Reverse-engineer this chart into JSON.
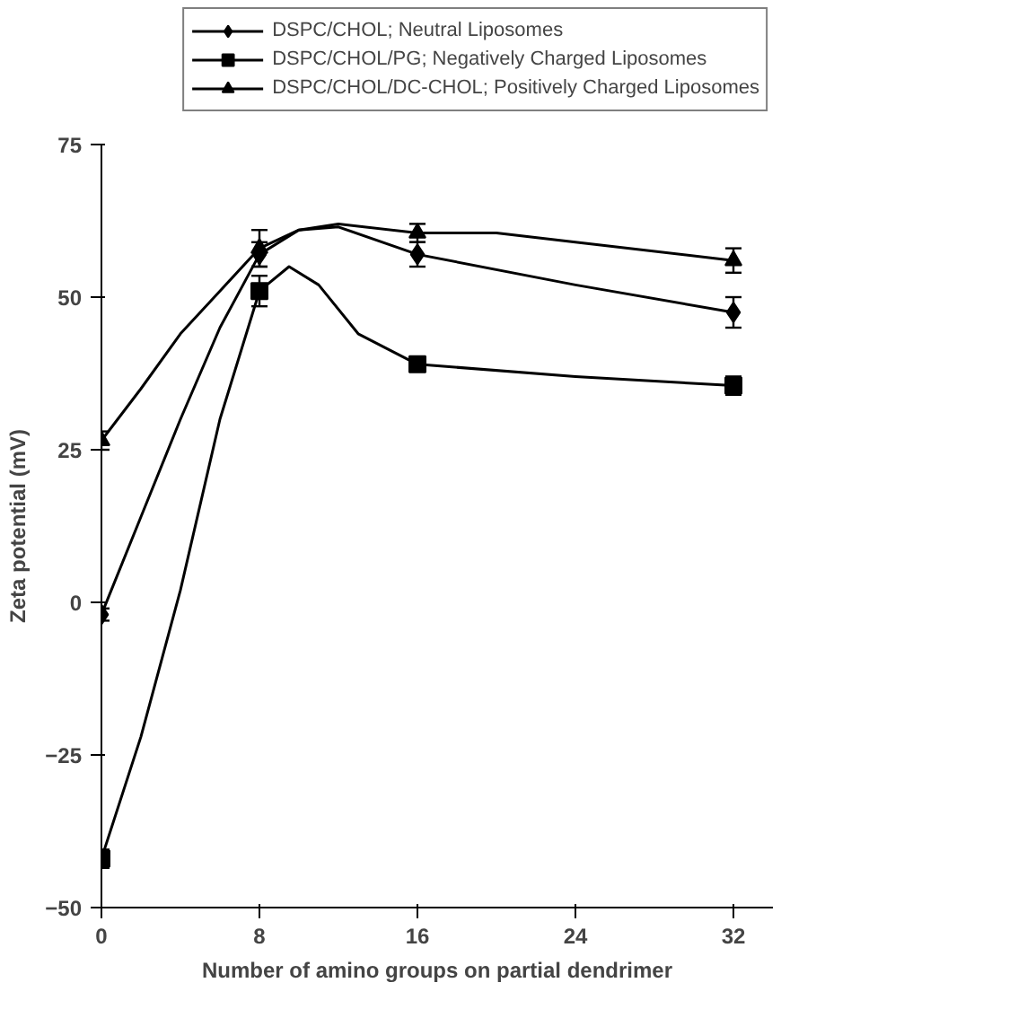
{
  "chart_data": {
    "type": "line",
    "xlabel": "Number of amino groups on partial dendrimer",
    "ylabel": "Zeta potential (mV)",
    "xlim": [
      0,
      34
    ],
    "xticks": [
      0,
      8,
      16,
      24,
      32
    ],
    "ylim": [
      -50,
      75
    ],
    "yticks": [
      -50,
      -25,
      0,
      25,
      50,
      75
    ],
    "grid": false,
    "legend": "top right",
    "line_style": "solid",
    "series": [
      {
        "type": "line",
        "color": "#000000",
        "marker": "none",
        "x": [
          0,
          2,
          4,
          6,
          8,
          10,
          12,
          16,
          24,
          32
        ],
        "values": [
          -2,
          14,
          30,
          45,
          57,
          61,
          61.5,
          57,
          52,
          47.5
        ]
      },
      {
        "type": "line",
        "color": "#000000",
        "marker": "none",
        "x": [
          0,
          2,
          4,
          6,
          8,
          9.5,
          11,
          13,
          16,
          24,
          32
        ],
        "values": [
          -42,
          -22,
          2,
          30,
          51,
          55,
          52,
          44,
          39,
          37,
          35.5
        ]
      },
      {
        "type": "line",
        "color": "#000000",
        "marker": "none",
        "x": [
          0,
          2,
          4,
          6,
          8,
          10,
          12,
          16,
          20,
          24,
          32
        ],
        "values": [
          26.5,
          35,
          44,
          51,
          58,
          61,
          62,
          60.5,
          60.5,
          59,
          56
        ]
      },
      {
        "type": "scatter",
        "name": "DSPC/CHOL; Neutral Liposomes",
        "color": "#000000",
        "marker": "diamond",
        "x": [
          0,
          8,
          16,
          32
        ],
        "values": [
          -2,
          57,
          57,
          47.5
        ],
        "errors": [
          1,
          2,
          2,
          2.5
        ]
      },
      {
        "type": "scatter",
        "name": "DSPC/CHOL/PG; Negatively Charged Liposomes",
        "color": "#000000",
        "marker": "square",
        "x": [
          0,
          8,
          16,
          32
        ],
        "values": [
          -42,
          51,
          39,
          35.5
        ],
        "errors": [
          1.5,
          2.5,
          1,
          1.5
        ]
      },
      {
        "type": "scatter",
        "name": "DSPC/CHOL/DC-CHOL; Positively Charged Liposomes",
        "color": "#000000",
        "marker": "triangle",
        "x": [
          0,
          8,
          16,
          32
        ],
        "values": [
          26.5,
          58,
          60.5,
          56
        ],
        "errors": [
          1.5,
          3,
          1.5,
          2
        ]
      }
    ]
  }
}
